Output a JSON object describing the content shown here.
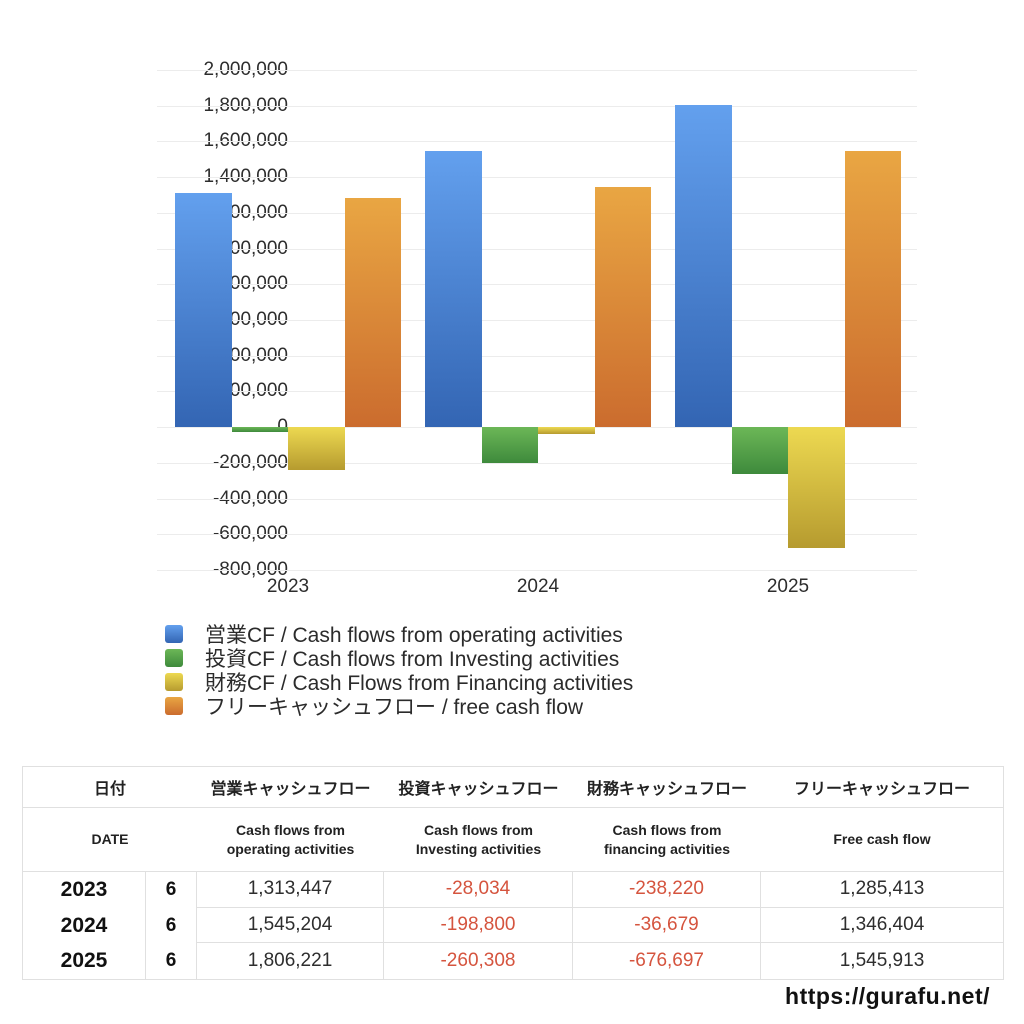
{
  "chart_data": {
    "type": "bar",
    "title": "",
    "xlabel": "",
    "ylabel": "",
    "categories": [
      "2023",
      "2024",
      "2025"
    ],
    "series": [
      {
        "name": "営業CF / Cash flows from operating activities",
        "values": [
          1313447,
          1545204,
          1806221
        ],
        "color_top": "#63a0ee",
        "color_bottom": "#3365b3"
      },
      {
        "name": "投資CF / Cash flows from Investing activities",
        "values": [
          -28034,
          -198800,
          -260308
        ],
        "color_top": "#6cb757",
        "color_bottom": "#3e8a3c"
      },
      {
        "name": "財務CF / Cash Flows from Financing activities",
        "values": [
          -238220,
          -36679,
          -676697
        ],
        "color_top": "#edd951",
        "color_bottom": "#b69b2f"
      },
      {
        "name": "フリーキャッシュフロー / free cash flow",
        "values": [
          1285413,
          1346404,
          1545913
        ],
        "color_top": "#e9a643",
        "color_bottom": "#cb6c2e"
      }
    ],
    "ylim": [
      -800000,
      2000000
    ],
    "y_step": 200000,
    "grid": true,
    "legend_position": "bottom-left"
  },
  "table": {
    "header_jp": [
      "日付",
      "営業キャッシュフロー",
      "投資キャッシュフロー",
      "財務キャッシュフロー",
      "フリーキャッシュフロー"
    ],
    "header_en": [
      "DATE",
      "Cash flows from\noperating activities",
      "Cash flows from\nInvesting activities",
      "Cash flows from\nfinancing activities",
      "Free cash flow"
    ],
    "rows": [
      {
        "year": "2023",
        "month": "6",
        "values": [
          "1,313,447",
          "-28,034",
          "-238,220",
          "1,285,413"
        ]
      },
      {
        "year": "2024",
        "month": "6",
        "values": [
          "1,545,204",
          "-198,800",
          "-36,679",
          "1,346,404"
        ]
      },
      {
        "year": "2025",
        "month": "6",
        "values": [
          "1,806,221",
          "-260,308",
          "-676,697",
          "1,545,913"
        ]
      }
    ]
  },
  "footer": {
    "url": "https://gurafu.net/"
  },
  "colors": {
    "negative": "#d5543e",
    "grid": "#ececec",
    "border": "#e0e0e0",
    "text": "#222222"
  }
}
